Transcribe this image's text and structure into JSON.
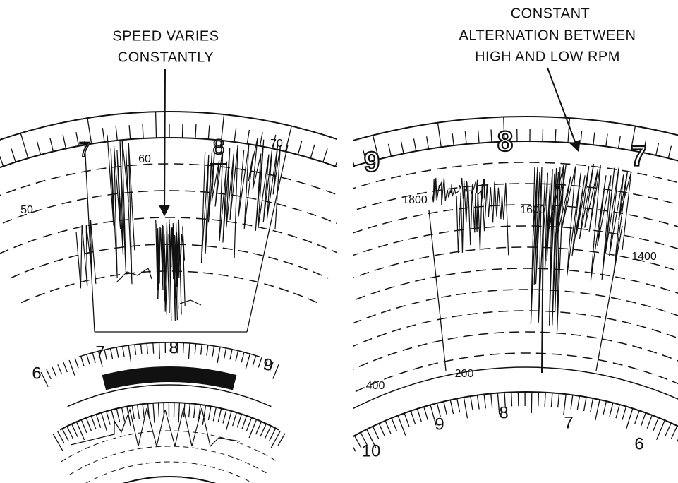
{
  "left_panel": {
    "annotation": [
      "SPEED VARIES",
      "CONSTANTLY"
    ],
    "upper_scale_labels": [
      "7",
      "60",
      "8",
      "70"
    ],
    "side_label": "50",
    "lower_scale_labels": [
      "6",
      "7",
      "8",
      "9"
    ]
  },
  "right_panel": {
    "annotation": [
      "CONSTANT",
      "ALTERNATION BETWEEN",
      "HIGH AND LOW RPM"
    ],
    "upper_scale_labels": [
      "9",
      "8",
      "7"
    ],
    "rpm_labels": [
      "1800",
      "1600",
      "1400"
    ],
    "inner_labels": [
      "400",
      "200"
    ],
    "lower_scale_labels": [
      "10",
      "9",
      "8",
      "7",
      "6"
    ]
  }
}
